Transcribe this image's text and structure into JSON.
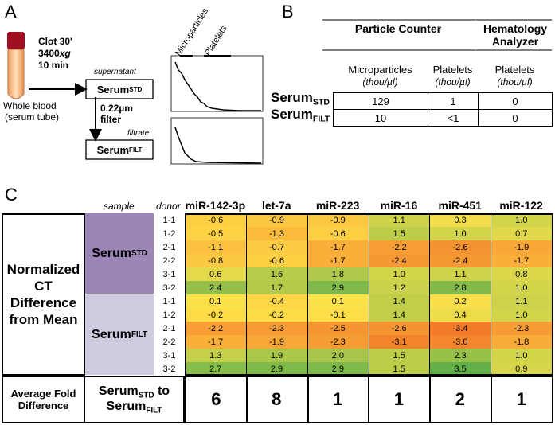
{
  "panel_a": {
    "label": "A",
    "clot": "Clot 30'",
    "speed": {
      "main": "3400",
      "unit": "xg"
    },
    "time": "10 min",
    "source": [
      "Whole blood",
      "(serum tube)"
    ],
    "supernatant": "supernatant",
    "serum_std": {
      "main": "Serum",
      "sub": "STD"
    },
    "filter": [
      "0.22µm",
      "filter"
    ],
    "filtrate": "filtrate",
    "serum_filt": {
      "main": "Serum",
      "sub": "FILT"
    },
    "plot_labels": [
      "Microparticles",
      "Platelets"
    ]
  },
  "panel_b": {
    "label": "B",
    "groups": [
      "Particle Counter",
      "Hematology Analyzer"
    ],
    "columns": [
      {
        "name": "Microparticles",
        "unit": "(thou/µl)"
      },
      {
        "name": "Platelets",
        "unit": "(thou/µl)"
      },
      {
        "name": "Platelets",
        "unit": "(thou/µl)"
      }
    ],
    "rows": [
      {
        "sample": {
          "main": "Serum",
          "sub": "STD"
        },
        "values": [
          "129",
          "1",
          "0"
        ]
      },
      {
        "sample": {
          "main": "Serum",
          "sub": "FILT"
        },
        "values": [
          "10",
          "<1",
          "0"
        ]
      }
    ]
  },
  "panel_c": {
    "label": "C",
    "sample_header": "sample",
    "donor_header": "donor",
    "columns": [
      "miR-142-3p",
      "let-7a",
      "miR-223",
      "miR-16",
      "miR-451",
      "miR-122"
    ],
    "row_title": [
      "Normalized",
      "CT",
      "Difference",
      "from Mean"
    ],
    "groups": [
      {
        "sample": {
          "main": "Serum",
          "sub": "STD"
        },
        "rows": [
          {
            "donor": "1-1",
            "values": [
              "-0.6",
              "-0.9",
              "-0.9",
              "1.1",
              "0.3",
              "1.0"
            ]
          },
          {
            "donor": "1-2",
            "values": [
              "-0.5",
              "-1.3",
              "-0.6",
              "1.5",
              "1.0",
              "0.7"
            ]
          },
          {
            "donor": "2-1",
            "values": [
              "-1.1",
              "-0.7",
              "-1.7",
              "-2.2",
              "-2.6",
              "-1.9"
            ]
          },
          {
            "donor": "2-2",
            "values": [
              "-0.8",
              "-0.6",
              "-1.7",
              "-2.4",
              "-2.4",
              "-1.7"
            ]
          },
          {
            "donor": "3-1",
            "values": [
              "0.6",
              "1.6",
              "1.8",
              "1.0",
              "1.1",
              "0.8"
            ]
          },
          {
            "donor": "3-2",
            "values": [
              "2.4",
              "1.7",
              "2.9",
              "1.2",
              "2.8",
              "1.0"
            ]
          }
        ]
      },
      {
        "sample": {
          "main": "Serum",
          "sub": "FILT"
        },
        "rows": [
          {
            "donor": "1-1",
            "values": [
              "0.1",
              "-0.4",
              "0.1",
              "1.4",
              "0.2",
              "1.1"
            ]
          },
          {
            "donor": "1-2",
            "values": [
              "-0.2",
              "-0.2",
              "-0.1",
              "1.4",
              "0.4",
              "1.0"
            ]
          },
          {
            "donor": "2-1",
            "values": [
              "-2.2",
              "-2.3",
              "-2.5",
              "-2.6",
              "-3.4",
              "-2.3"
            ]
          },
          {
            "donor": "2-2",
            "values": [
              "-1.7",
              "-1.9",
              "-2.3",
              "-3.1",
              "-3.0",
              "-1.8"
            ]
          },
          {
            "donor": "3-1",
            "values": [
              "1.3",
              "1.9",
              "2.0",
              "1.5",
              "2.3",
              "1.0"
            ]
          },
          {
            "donor": "3-2",
            "values": [
              "2.7",
              "2.9",
              "2.9",
              "1.5",
              "3.5",
              "0.9"
            ]
          }
        ]
      }
    ],
    "footer": {
      "title": "Average Fold Difference",
      "comparison": {
        "from": {
          "main": "Serum",
          "sub": "STD"
        },
        "word": "to",
        "to": {
          "main": "Serum",
          "sub": "FILT"
        }
      },
      "values": [
        6,
        8,
        1,
        1,
        2,
        1
      ]
    }
  }
}
